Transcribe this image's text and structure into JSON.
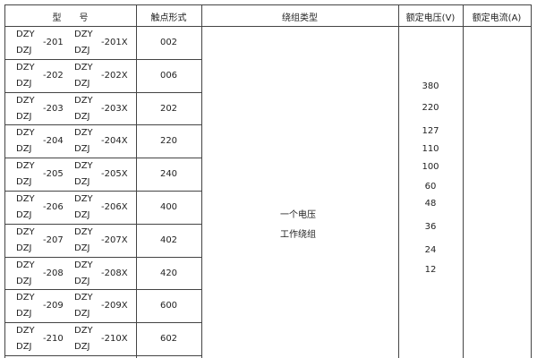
{
  "headers": {
    "model": "型　　号",
    "contact": "触点形式",
    "winding": "绕组类型",
    "voltage": "额定电压(V)",
    "current": "额定电流(A)"
  },
  "rows": [
    {
      "a": "DZY",
      "b": "DZJ",
      "n1": "-201",
      "c": "DZY",
      "d": "DZJ",
      "n2": "-201X",
      "contact": "002"
    },
    {
      "a": "DZY",
      "b": "DZJ",
      "n1": "-202",
      "c": "DZY",
      "d": "DZJ",
      "n2": "-202X",
      "contact": "006"
    },
    {
      "a": "DZY",
      "b": "DZJ",
      "n1": "-203",
      "c": "DZY",
      "d": "DZJ",
      "n2": "-203X",
      "contact": "202"
    },
    {
      "a": "DZY",
      "b": "DZJ",
      "n1": "-204",
      "c": "DZY",
      "d": "DZJ",
      "n2": "-204X",
      "contact": "220"
    },
    {
      "a": "DZY",
      "b": "DZJ",
      "n1": "-205",
      "c": "DZY",
      "d": "DZJ",
      "n2": "-205X",
      "contact": "240"
    },
    {
      "a": "DZY",
      "b": "DZJ",
      "n1": "-206",
      "c": "DZY",
      "d": "DZJ",
      "n2": "-206X",
      "contact": "400"
    },
    {
      "a": "DZY",
      "b": "DZJ",
      "n1": "-207",
      "c": "DZY",
      "d": "DZJ",
      "n2": "-207X",
      "contact": "402"
    },
    {
      "a": "DZY",
      "b": "DZJ",
      "n1": "-208",
      "c": "DZY",
      "d": "DZJ",
      "n2": "-208X",
      "contact": "420"
    },
    {
      "a": "DZY",
      "b": "DZJ",
      "n1": "-209",
      "c": "DZY",
      "d": "DZJ",
      "n2": "-209X",
      "contact": "600"
    },
    {
      "a": "DZY",
      "b": "DZJ",
      "n1": "-210",
      "c": "DZY",
      "d": "DZJ",
      "n2": "-210X",
      "contact": "602"
    }
  ],
  "winding": {
    "line1": "一个电压",
    "line2": "工作绕组"
  },
  "voltages": [
    "380",
    "220",
    "127",
    "110",
    "100",
    "60",
    "48",
    "36",
    "24",
    "12"
  ]
}
